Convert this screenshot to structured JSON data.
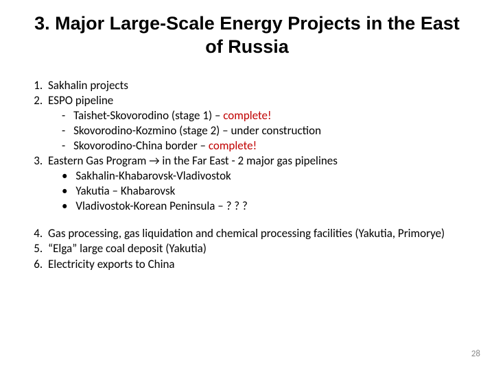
{
  "title": "3. Major Large-Scale Energy Projects in the East of Russia",
  "colors": {
    "text": "#000000",
    "highlight": "#c00000",
    "background": "#ffffff",
    "pagenum": "#8a8a8a"
  },
  "typography": {
    "title_font": "Arial",
    "title_fontsize": 27,
    "title_weight": 700,
    "body_font": "Calibri",
    "body_fontsize": 17
  },
  "items": [
    {
      "num": "1",
      "text": "Sakhalin projects"
    },
    {
      "num": "2",
      "text": "ESPO pipeline",
      "sub_style": "dash",
      "sub": [
        {
          "prefix": "Taishet-Skovorodino (stage 1) – ",
          "hl": "complete!"
        },
        {
          "prefix": "Skovorodino-Kozmino (stage 2) – under construction",
          "hl": ""
        },
        {
          "prefix": "Skovorodino-China border – ",
          "hl": "complete!"
        }
      ]
    },
    {
      "num": "3",
      "text": "Eastern Gas Program → in the Far East - 2 major gas pipelines",
      "sub_style": "bullet",
      "sub": [
        {
          "prefix": "Sakhalin-Khabarovsk-Vladivostok",
          "hl": ""
        },
        {
          "prefix": "Yakutia – Khabarovsk",
          "hl": ""
        },
        {
          "prefix": "Vladivostok-Korean Peninsula – ? ? ?",
          "hl": ""
        }
      ]
    }
  ],
  "items2": [
    {
      "num": "4",
      "text": "Gas processing, gas liquidation and chemical processing facilities (Yakutia, Primorye)"
    },
    {
      "num": "5",
      "text": "“Elga” large coal deposit (Yakutia)"
    },
    {
      "num": "6",
      "text": "Electricity exports to China"
    }
  ],
  "page_number": "28"
}
